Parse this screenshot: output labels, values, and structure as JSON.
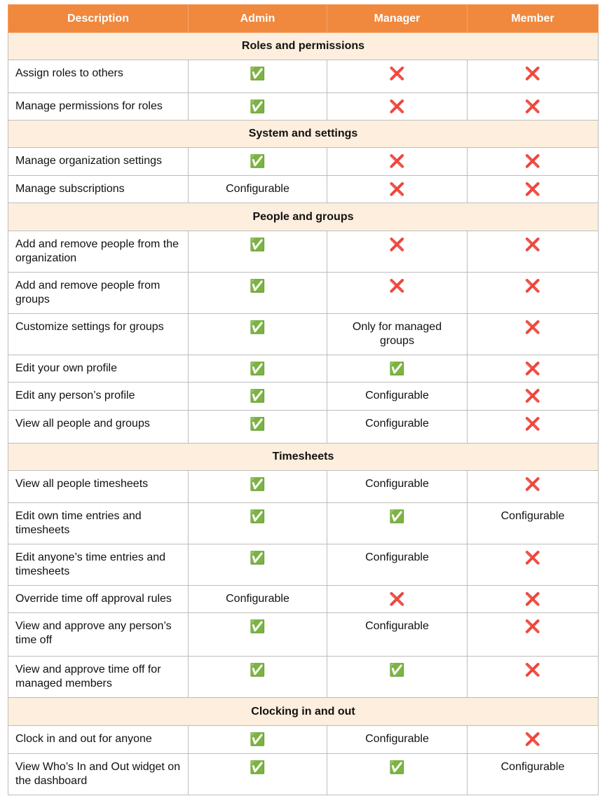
{
  "table": {
    "header": [
      "Description",
      "Admin",
      "Manager",
      "Member"
    ],
    "sections": [
      {
        "title": "Roles and permissions",
        "rows": [
          [
            "Assign roles to others",
            "✅",
            "❌",
            "❌"
          ],
          [
            "Manage permissions for roles",
            "✅",
            "❌",
            "❌"
          ]
        ]
      },
      {
        "title": "System and settings",
        "rows": [
          [
            "Manage organization settings",
            "✅",
            "❌",
            "❌"
          ],
          [
            "Manage subscriptions",
            "Configurable",
            "❌",
            "❌"
          ]
        ]
      },
      {
        "title": "People and groups",
        "rows": [
          [
            "Add and remove people from the organization",
            "✅",
            "❌",
            "❌"
          ],
          [
            "Add and remove people from groups",
            "✅",
            "❌",
            "❌"
          ],
          [
            "Customize settings for groups",
            "✅",
            "Only for managed groups",
            "❌"
          ],
          [
            "Edit your own profile",
            "✅",
            "✅",
            "❌"
          ],
          [
            "Edit any person’s profile",
            "✅",
            "Configurable",
            "❌"
          ],
          [
            "View all people and groups",
            "✅",
            "Configurable",
            "❌"
          ]
        ]
      },
      {
        "title": "Timesheets",
        "rows": [
          [
            "View all people timesheets",
            "✅",
            "Configurable",
            "❌"
          ],
          [
            "Edit own time entries and timesheets",
            "✅",
            "✅",
            "Configurable"
          ],
          [
            "Edit anyone’s time entries and timesheets",
            "✅",
            "Configurable",
            "❌"
          ],
          [
            "Override time off approval rules",
            "Configurable",
            "❌",
            "❌"
          ],
          [
            "View and approve any person’s time off",
            "✅",
            "Configurable",
            "❌"
          ],
          [
            "View and approve time off for managed members",
            "✅",
            "✅",
            "❌"
          ]
        ]
      },
      {
        "title": "Clocking in and out",
        "rows": [
          [
            "Clock in and out for anyone",
            "✅",
            "Configurable",
            "❌"
          ],
          [
            "View Who’s In and Out widget on the dashboard",
            "✅",
            "✅",
            "Configurable"
          ]
        ]
      }
    ]
  }
}
